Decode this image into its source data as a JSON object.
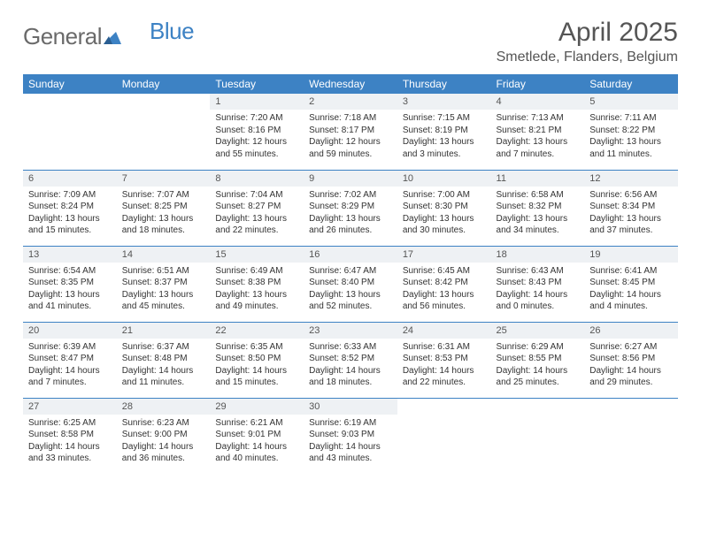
{
  "logo": {
    "text1": "General",
    "text2": "Blue"
  },
  "title": "April 2025",
  "location": "Smetlede, Flanders, Belgium",
  "colors": {
    "header_bg": "#3d82c4",
    "header_text": "#ffffff",
    "daynum_bg": "#eef1f4",
    "border": "#3d82c4",
    "logo_gray": "#6a6a6a",
    "logo_blue": "#3d82c4"
  },
  "day_names": [
    "Sunday",
    "Monday",
    "Tuesday",
    "Wednesday",
    "Thursday",
    "Friday",
    "Saturday"
  ],
  "weeks": [
    [
      null,
      null,
      {
        "n": "1",
        "sr": "Sunrise: 7:20 AM",
        "ss": "Sunset: 8:16 PM",
        "dl": "Daylight: 12 hours and 55 minutes."
      },
      {
        "n": "2",
        "sr": "Sunrise: 7:18 AM",
        "ss": "Sunset: 8:17 PM",
        "dl": "Daylight: 12 hours and 59 minutes."
      },
      {
        "n": "3",
        "sr": "Sunrise: 7:15 AM",
        "ss": "Sunset: 8:19 PM",
        "dl": "Daylight: 13 hours and 3 minutes."
      },
      {
        "n": "4",
        "sr": "Sunrise: 7:13 AM",
        "ss": "Sunset: 8:21 PM",
        "dl": "Daylight: 13 hours and 7 minutes."
      },
      {
        "n": "5",
        "sr": "Sunrise: 7:11 AM",
        "ss": "Sunset: 8:22 PM",
        "dl": "Daylight: 13 hours and 11 minutes."
      }
    ],
    [
      {
        "n": "6",
        "sr": "Sunrise: 7:09 AM",
        "ss": "Sunset: 8:24 PM",
        "dl": "Daylight: 13 hours and 15 minutes."
      },
      {
        "n": "7",
        "sr": "Sunrise: 7:07 AM",
        "ss": "Sunset: 8:25 PM",
        "dl": "Daylight: 13 hours and 18 minutes."
      },
      {
        "n": "8",
        "sr": "Sunrise: 7:04 AM",
        "ss": "Sunset: 8:27 PM",
        "dl": "Daylight: 13 hours and 22 minutes."
      },
      {
        "n": "9",
        "sr": "Sunrise: 7:02 AM",
        "ss": "Sunset: 8:29 PM",
        "dl": "Daylight: 13 hours and 26 minutes."
      },
      {
        "n": "10",
        "sr": "Sunrise: 7:00 AM",
        "ss": "Sunset: 8:30 PM",
        "dl": "Daylight: 13 hours and 30 minutes."
      },
      {
        "n": "11",
        "sr": "Sunrise: 6:58 AM",
        "ss": "Sunset: 8:32 PM",
        "dl": "Daylight: 13 hours and 34 minutes."
      },
      {
        "n": "12",
        "sr": "Sunrise: 6:56 AM",
        "ss": "Sunset: 8:34 PM",
        "dl": "Daylight: 13 hours and 37 minutes."
      }
    ],
    [
      {
        "n": "13",
        "sr": "Sunrise: 6:54 AM",
        "ss": "Sunset: 8:35 PM",
        "dl": "Daylight: 13 hours and 41 minutes."
      },
      {
        "n": "14",
        "sr": "Sunrise: 6:51 AM",
        "ss": "Sunset: 8:37 PM",
        "dl": "Daylight: 13 hours and 45 minutes."
      },
      {
        "n": "15",
        "sr": "Sunrise: 6:49 AM",
        "ss": "Sunset: 8:38 PM",
        "dl": "Daylight: 13 hours and 49 minutes."
      },
      {
        "n": "16",
        "sr": "Sunrise: 6:47 AM",
        "ss": "Sunset: 8:40 PM",
        "dl": "Daylight: 13 hours and 52 minutes."
      },
      {
        "n": "17",
        "sr": "Sunrise: 6:45 AM",
        "ss": "Sunset: 8:42 PM",
        "dl": "Daylight: 13 hours and 56 minutes."
      },
      {
        "n": "18",
        "sr": "Sunrise: 6:43 AM",
        "ss": "Sunset: 8:43 PM",
        "dl": "Daylight: 14 hours and 0 minutes."
      },
      {
        "n": "19",
        "sr": "Sunrise: 6:41 AM",
        "ss": "Sunset: 8:45 PM",
        "dl": "Daylight: 14 hours and 4 minutes."
      }
    ],
    [
      {
        "n": "20",
        "sr": "Sunrise: 6:39 AM",
        "ss": "Sunset: 8:47 PM",
        "dl": "Daylight: 14 hours and 7 minutes."
      },
      {
        "n": "21",
        "sr": "Sunrise: 6:37 AM",
        "ss": "Sunset: 8:48 PM",
        "dl": "Daylight: 14 hours and 11 minutes."
      },
      {
        "n": "22",
        "sr": "Sunrise: 6:35 AM",
        "ss": "Sunset: 8:50 PM",
        "dl": "Daylight: 14 hours and 15 minutes."
      },
      {
        "n": "23",
        "sr": "Sunrise: 6:33 AM",
        "ss": "Sunset: 8:52 PM",
        "dl": "Daylight: 14 hours and 18 minutes."
      },
      {
        "n": "24",
        "sr": "Sunrise: 6:31 AM",
        "ss": "Sunset: 8:53 PM",
        "dl": "Daylight: 14 hours and 22 minutes."
      },
      {
        "n": "25",
        "sr": "Sunrise: 6:29 AM",
        "ss": "Sunset: 8:55 PM",
        "dl": "Daylight: 14 hours and 25 minutes."
      },
      {
        "n": "26",
        "sr": "Sunrise: 6:27 AM",
        "ss": "Sunset: 8:56 PM",
        "dl": "Daylight: 14 hours and 29 minutes."
      }
    ],
    [
      {
        "n": "27",
        "sr": "Sunrise: 6:25 AM",
        "ss": "Sunset: 8:58 PM",
        "dl": "Daylight: 14 hours and 33 minutes."
      },
      {
        "n": "28",
        "sr": "Sunrise: 6:23 AM",
        "ss": "Sunset: 9:00 PM",
        "dl": "Daylight: 14 hours and 36 minutes."
      },
      {
        "n": "29",
        "sr": "Sunrise: 6:21 AM",
        "ss": "Sunset: 9:01 PM",
        "dl": "Daylight: 14 hours and 40 minutes."
      },
      {
        "n": "30",
        "sr": "Sunrise: 6:19 AM",
        "ss": "Sunset: 9:03 PM",
        "dl": "Daylight: 14 hours and 43 minutes."
      },
      null,
      null,
      null
    ]
  ]
}
